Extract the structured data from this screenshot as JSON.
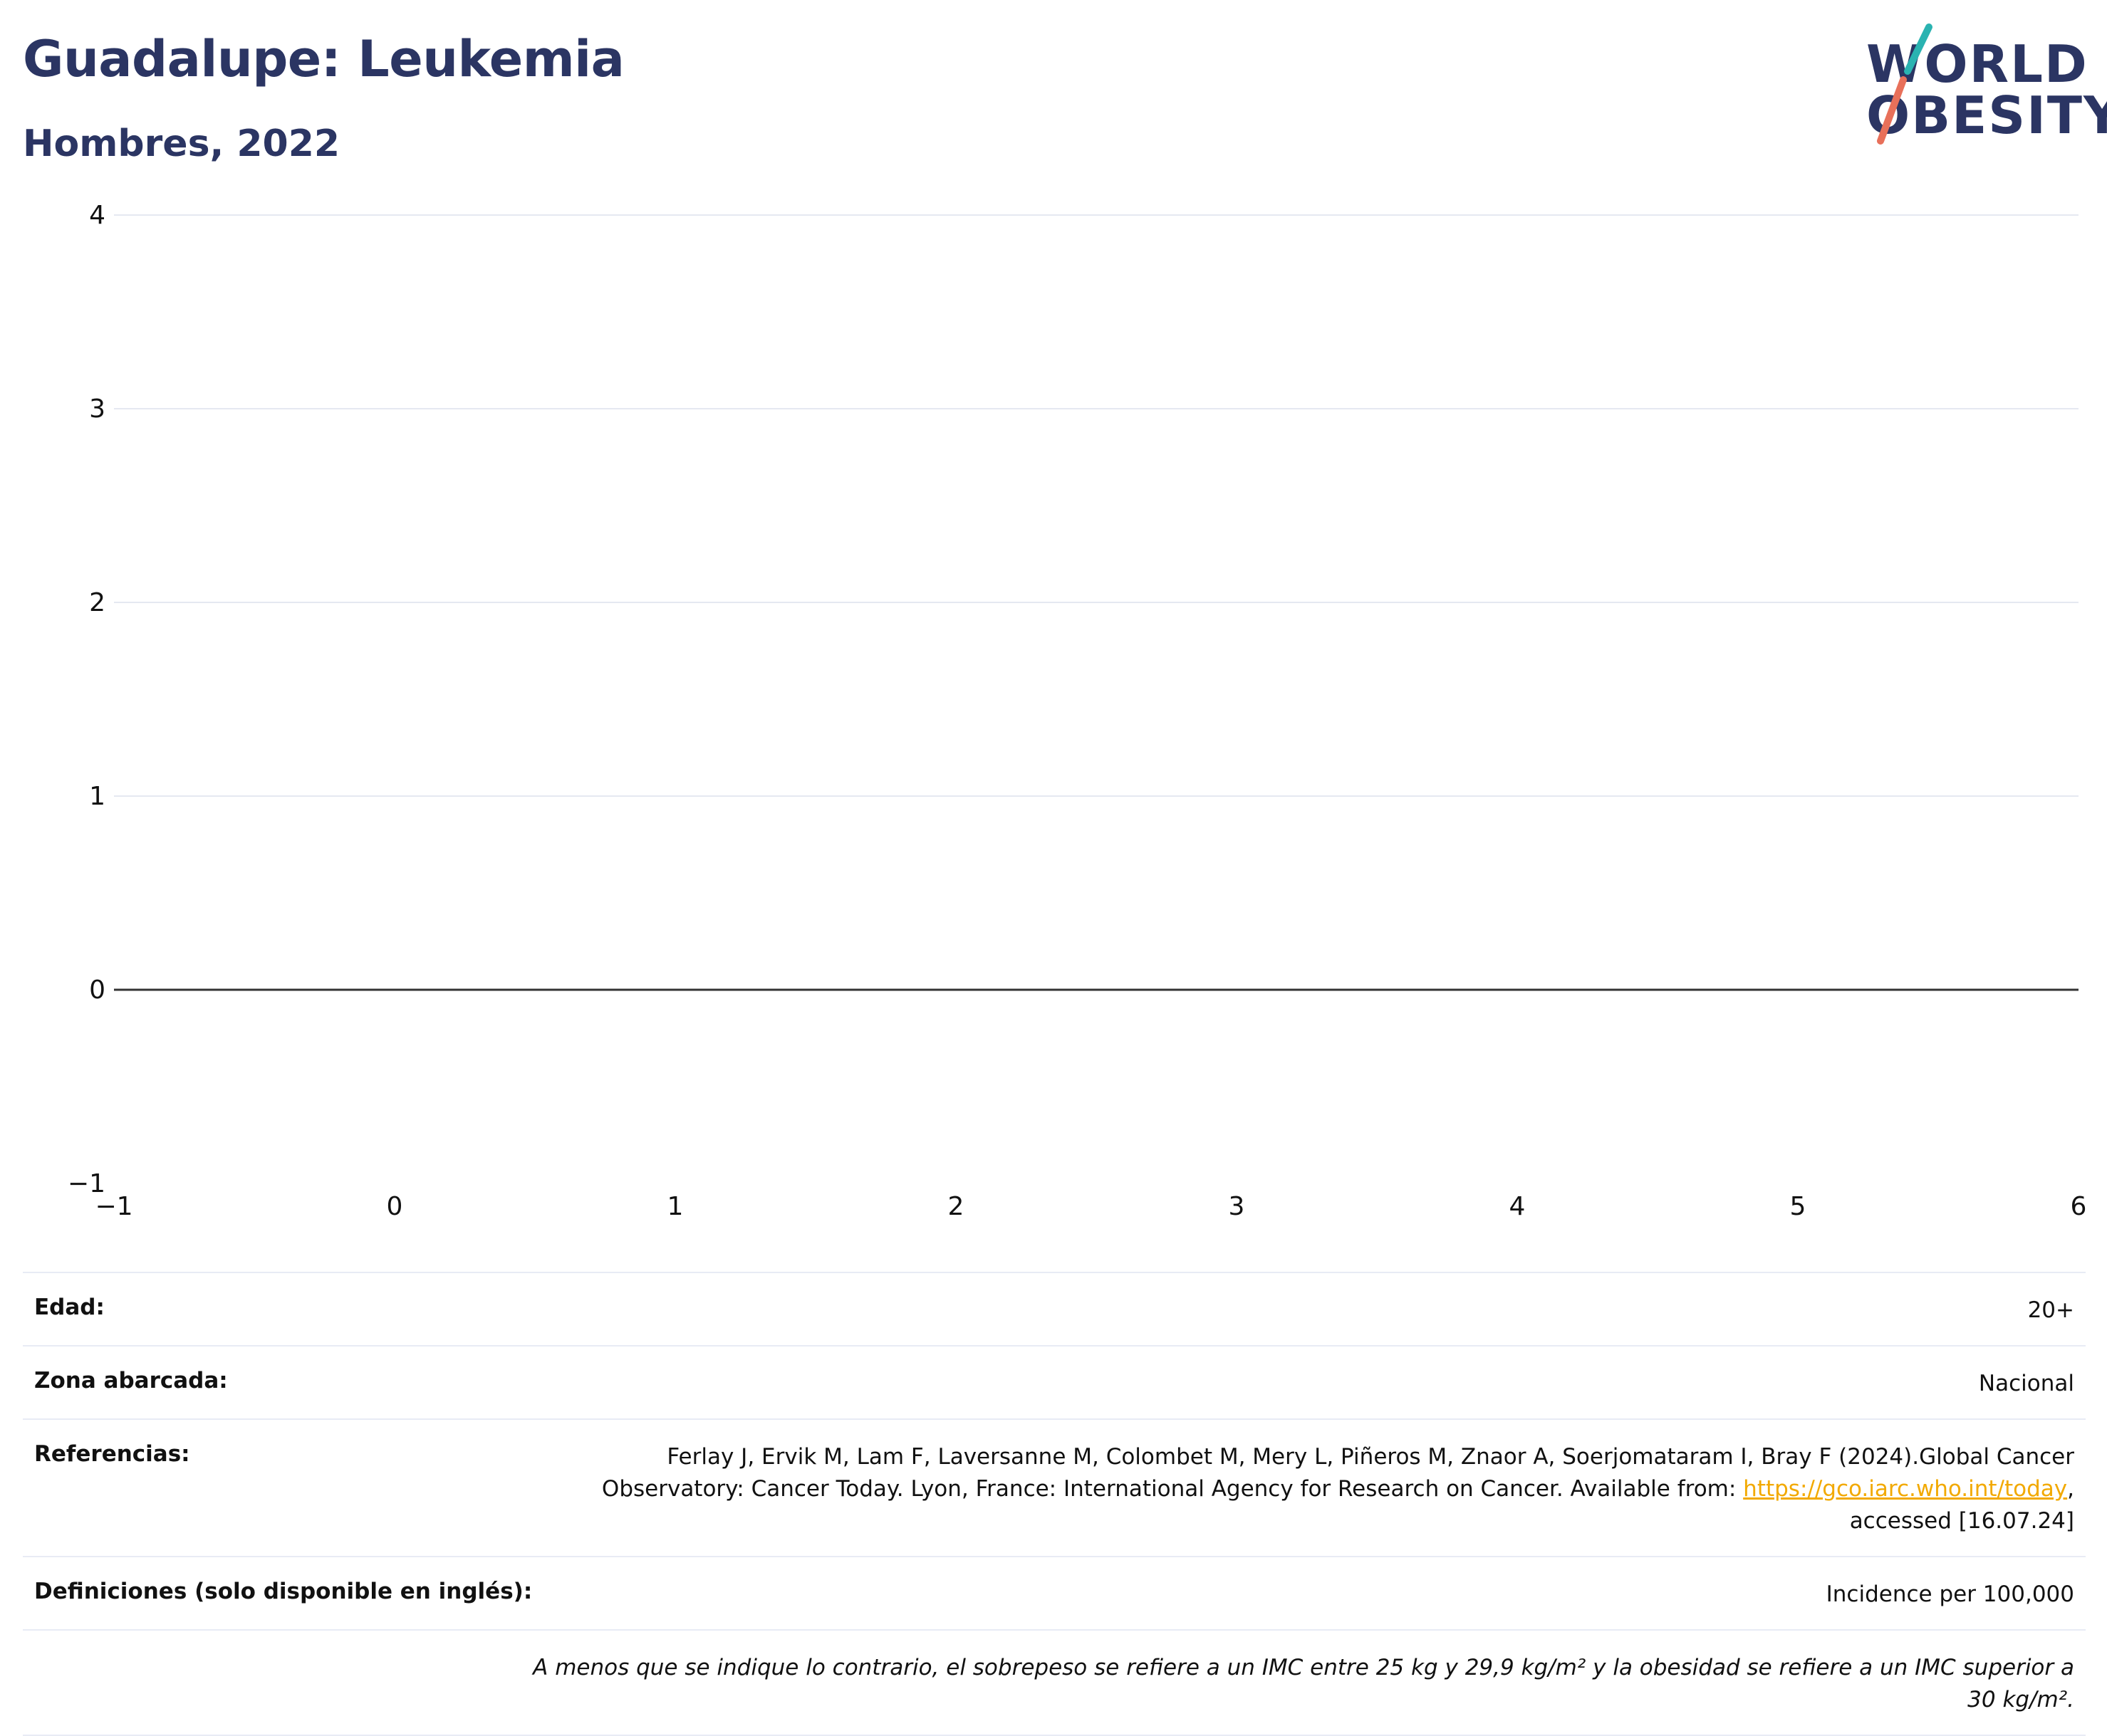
{
  "header": {
    "title": "Guadalupe: Leukemia",
    "subtitle": "Hombres, 2022"
  },
  "logo": {
    "line1": "WORLD",
    "line2": "OBESITY",
    "colors": {
      "text": "#2b3563",
      "slash_top": "#2ab3b1",
      "slash_bottom": "#e8705a"
    }
  },
  "chart_data": {
    "type": "line",
    "title": "",
    "xlabel": "",
    "ylabel": "",
    "xlim": [
      -1,
      6
    ],
    "ylim": [
      -1,
      4
    ],
    "x_ticks": [
      "−1",
      "0",
      "1",
      "2",
      "3",
      "4",
      "5",
      "6"
    ],
    "y_ticks": [
      "−1",
      "0",
      "1",
      "2",
      "3",
      "4"
    ],
    "series": [],
    "grid": true,
    "zero_line": true,
    "colors": {
      "grid": "#e5e8f1",
      "zero_line": "#333333",
      "tick_text": "#111111"
    }
  },
  "metadata": {
    "age": {
      "label": "Edad:",
      "value": "20+"
    },
    "area": {
      "label": "Zona abarcada:",
      "value": "Nacional"
    },
    "references": {
      "label": "Referencias:",
      "line1": "Ferlay J, Ervik M, Lam F, Laversanne M, Colombet M, Mery L, Piñeros M, Znaor A, Soerjomataram I, Bray F (2024).Global Cancer",
      "line2_prefix": "Observatory: Cancer Today. Lyon, France: International Agency for Research on Cancer. Available from: ",
      "link": "https://gco.iarc.who.int/today",
      "line2_suffix": ",",
      "line3": "accessed [16.07.24]"
    },
    "definitions": {
      "label": "Definiciones (solo disponible en inglés):",
      "value": "Incidence per 100,000"
    },
    "note": "A menos que se indique lo contrario, el sobrepeso se refiere a un IMC entre 25 kg y 29,9 kg/m² y la obesidad se refiere a un IMC superior a 30 kg/m²."
  }
}
